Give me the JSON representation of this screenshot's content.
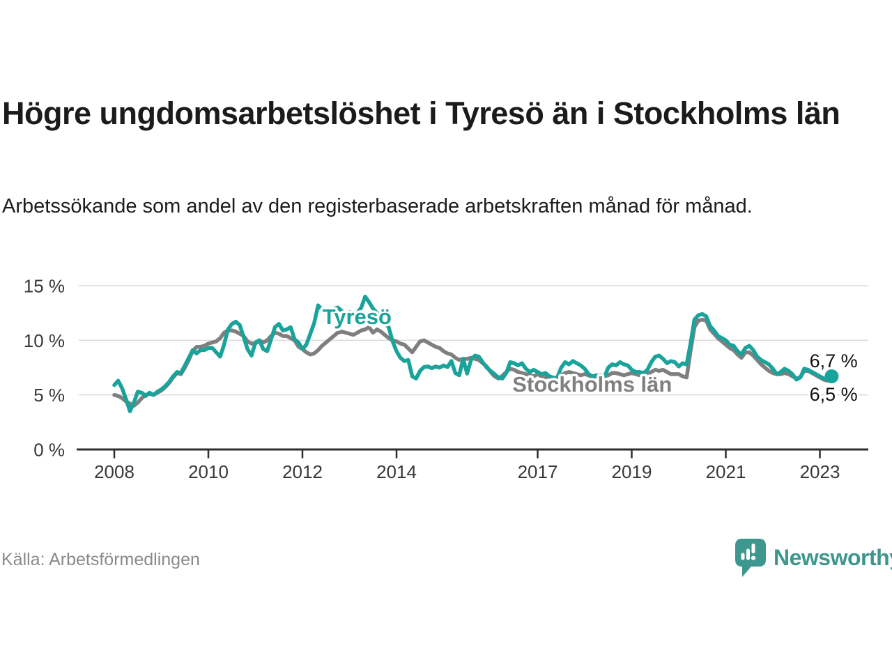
{
  "header": {
    "title": "Högre ungdomsarbetslöshet i Tyresö än i Stockholms län",
    "subtitle": "Arbetssökande som andel av den registerbaserade arbetskraften månad för månad."
  },
  "footer": {
    "source": "Källa: Arbetsförmedlingen",
    "brand": "Newsworthy",
    "brand_icon": "bar-chart-speech-bubble-icon"
  },
  "colors": {
    "tyreso": "#19a39a",
    "stockholm": "#7f7f7f",
    "grid": "#dcdcdc",
    "axis": "#2e2e2e",
    "tick_text": "#383838",
    "end_label_text": "#111111",
    "brand": "#3d978e",
    "source_text": "#8a8a8a"
  },
  "chart_data": {
    "type": "line",
    "title": "Högre ungdomsarbetslöshet i Tyresö än i Stockholms län",
    "subtitle": "Arbetssökande som andel av den registerbaserade arbetskraften månad för månad.",
    "x_unit": "month",
    "x_start": "2008-01",
    "x_end": "2023-04",
    "x_ticks": [
      2008,
      2010,
      2012,
      2014,
      2017,
      2019,
      2021,
      2023
    ],
    "xlim": [
      2007.2,
      2024.0
    ],
    "y_ticks": [
      0,
      5,
      10,
      15
    ],
    "y_tick_suffix": " %",
    "ylim": [
      0,
      15.5
    ],
    "grid": true,
    "legend": "inline-labels",
    "series": [
      {
        "name": "Stockholms län",
        "color": "#7f7f7f",
        "end_value_label": "6,5 %",
        "values": [
          5.0,
          4.9,
          4.7,
          4.4,
          4.2,
          4.0,
          4.3,
          4.7,
          5.0,
          5.1,
          5.0,
          5.2,
          5.4,
          5.7,
          6.1,
          6.6,
          7.0,
          6.9,
          7.5,
          8.2,
          9.0,
          9.4,
          9.4,
          9.5,
          9.7,
          9.8,
          9.9,
          10.2,
          10.7,
          10.9,
          10.9,
          10.8,
          10.6,
          10.4,
          9.9,
          9.7,
          9.7,
          10.0,
          9.8,
          10.0,
          10.4,
          10.7,
          10.6,
          10.4,
          10.4,
          10.2,
          10.0,
          9.4,
          9.2,
          8.9,
          8.7,
          8.8,
          9.1,
          9.5,
          9.8,
          10.1,
          10.4,
          10.7,
          10.8,
          10.7,
          10.6,
          10.5,
          10.7,
          10.9,
          11.0,
          11.2,
          10.7,
          11.0,
          10.8,
          10.5,
          10.2,
          10.0,
          9.9,
          9.7,
          9.6,
          9.25,
          8.9,
          9.4,
          9.9,
          10.0,
          9.8,
          9.6,
          9.4,
          9.3,
          9.0,
          8.8,
          8.7,
          8.4,
          8.2,
          8.3,
          8.3,
          8.4,
          8.3,
          8.2,
          7.9,
          7.6,
          7.1,
          6.7,
          6.5,
          6.75,
          7.1,
          7.4,
          7.3,
          7.1,
          7.0,
          6.9,
          6.8,
          6.7,
          6.9,
          6.7,
          6.6,
          6.7,
          6.6,
          6.5,
          6.8,
          7.0,
          7.1,
          7.0,
          6.9,
          6.8,
          6.9,
          6.8,
          6.6,
          6.7,
          6.8,
          6.7,
          6.8,
          7.0,
          7.0,
          6.9,
          6.8,
          6.9,
          7.0,
          6.9,
          6.8,
          6.7,
          6.9,
          7.1,
          7.3,
          7.2,
          7.3,
          7.1,
          6.9,
          6.9,
          6.9,
          6.7,
          6.6,
          9.0,
          11.2,
          11.8,
          11.9,
          11.8,
          11.0,
          10.6,
          10.2,
          9.9,
          9.6,
          9.3,
          9.1,
          8.7,
          8.4,
          8.9,
          8.9,
          8.6,
          8.2,
          7.8,
          7.5,
          7.2,
          7.0,
          6.9,
          6.9,
          7.0,
          6.9,
          6.7,
          6.5,
          6.6,
          7.2,
          7.2,
          7.0,
          6.8,
          6.6,
          6.4,
          6.3,
          6.5
        ]
      },
      {
        "name": "Tyresö",
        "color": "#19a39a",
        "end_dot": true,
        "end_value_label": "6,7 %",
        "values": [
          5.9,
          6.3,
          5.6,
          4.6,
          3.5,
          4.3,
          5.3,
          5.2,
          4.9,
          5.2,
          5.0,
          5.3,
          5.5,
          5.8,
          6.2,
          6.7,
          7.1,
          7.0,
          7.7,
          8.4,
          9.1,
          8.8,
          9.1,
          9.1,
          9.3,
          9.3,
          8.9,
          8.5,
          9.6,
          11.0,
          11.5,
          11.7,
          11.4,
          10.3,
          9.2,
          8.6,
          9.8,
          10.0,
          9.2,
          9.0,
          10.1,
          11.2,
          11.5,
          10.9,
          11.0,
          11.2,
          10.1,
          9.8,
          9.2,
          9.6,
          10.6,
          11.6,
          13.2,
          12.8,
          12.5,
          12.7,
          12.9,
          13.0,
          12.7,
          12.4,
          12.6,
          12.2,
          12.5,
          13.0,
          14.0,
          13.5,
          12.9,
          12.5,
          12.1,
          11.6,
          11.2,
          9.9,
          9.0,
          8.4,
          8.1,
          8.2,
          6.7,
          6.5,
          7.2,
          7.55,
          7.6,
          7.45,
          7.6,
          7.5,
          7.7,
          7.55,
          8.1,
          7.0,
          6.8,
          8.3,
          6.95,
          8.2,
          8.6,
          8.5,
          8.0,
          7.5,
          7.2,
          6.9,
          6.6,
          6.5,
          7.0,
          8.0,
          7.9,
          7.7,
          7.9,
          7.4,
          7.1,
          7.3,
          7.1,
          6.9,
          7.0,
          6.7,
          6.4,
          6.6,
          7.5,
          8.0,
          7.8,
          8.1,
          7.9,
          7.7,
          7.4,
          6.9,
          6.7,
          6.8,
          6.7,
          6.6,
          7.5,
          7.8,
          7.7,
          8.0,
          7.8,
          7.7,
          7.3,
          7.1,
          7.1,
          7.0,
          7.3,
          8.0,
          8.5,
          8.6,
          8.3,
          7.9,
          8.1,
          8.0,
          7.6,
          7.9,
          7.8,
          9.7,
          11.9,
          12.3,
          12.4,
          12.2,
          11.3,
          10.9,
          10.4,
          10.2,
          10.0,
          9.6,
          9.5,
          9.0,
          8.7,
          9.3,
          9.5,
          9.1,
          8.5,
          8.2,
          8.0,
          7.8,
          7.4,
          6.9,
          7.1,
          7.4,
          7.2,
          6.9,
          6.4,
          6.6,
          7.4,
          7.3,
          7.1,
          6.9,
          6.7,
          6.5,
          6.4,
          6.7
        ]
      }
    ],
    "annotations": {
      "tyreso_label": {
        "text": "Tyresö",
        "x": 2013.16,
        "y_baseline_value": 11.5
      },
      "stockholm_label": {
        "text": "Stockholms län",
        "x": 2018.16,
        "y_baseline_value": 5.3
      },
      "end_labels": [
        {
          "text": "6,7 %",
          "x": 2023.29,
          "y_baseline_value": 7.53
        },
        {
          "text": "6,5 %",
          "x": 2023.29,
          "y_baseline_value": 4.47
        }
      ]
    }
  }
}
